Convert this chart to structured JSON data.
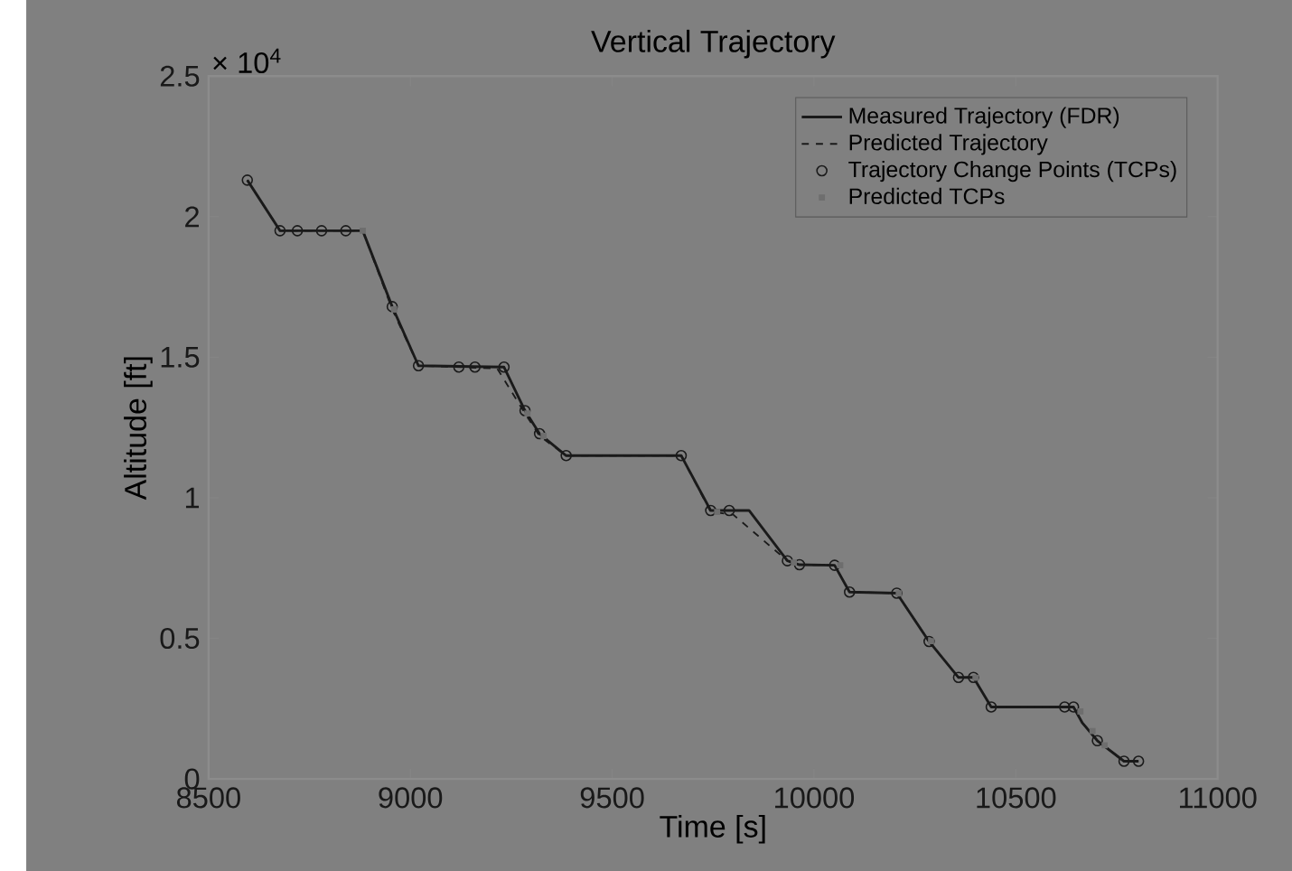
{
  "chart_data": {
    "type": "line",
    "title": "Vertical Trajectory",
    "xlabel": "Time [s]",
    "ylabel": "Altitude [ft]",
    "annotations": [
      "× 10$^{4}$"
    ],
    "xlim": [
      8500,
      11000
    ],
    "xticks": [
      8500,
      9000,
      9500,
      10000,
      10500,
      11000
    ],
    "ylim": [
      0,
      2.5
    ],
    "yticks": [
      0,
      0.5,
      1,
      1.5,
      2,
      2.5
    ],
    "legend": "top right",
    "grid": false,
    "series": [
      {
        "name": "Measured Trajectory (FDR)",
        "type": "line",
        "line_style": "solid",
        "marker": "none",
        "color": "#1a1a1a",
        "x": [
          8596,
          8677,
          8882,
          8955,
          9020,
          9232,
          9284,
          9320,
          9386,
          9671,
          9744,
          9839,
          9934,
          9964,
          10051,
          10088,
          10205,
          10285,
          10358,
          10395,
          10439,
          10621,
          10643,
          10665,
          10702,
          10768,
          10804
        ],
        "values": [
          2.13,
          1.95,
          1.95,
          1.68,
          1.47,
          1.465,
          1.31,
          1.228,
          1.15,
          1.15,
          0.955,
          0.955,
          0.776,
          0.762,
          0.76,
          0.665,
          0.661,
          0.489,
          0.361,
          0.361,
          0.256,
          0.256,
          0.256,
          0.199,
          0.136,
          0.063,
          0.063
        ]
      },
      {
        "name": "Predicted Trajectory",
        "type": "line",
        "line_style": "dashed",
        "marker": "none",
        "color": "#1a1a1a",
        "x": [
          8596,
          8677,
          8882,
          8955,
          9020,
          9215,
          9284,
          9320,
          9386,
          9671,
          9744,
          9800,
          9934,
          9964,
          10051,
          10088,
          10205,
          10285,
          10358,
          10395,
          10439,
          10621,
          10643,
          10665,
          10702,
          10768,
          10804
        ],
        "values": [
          2.13,
          1.95,
          1.95,
          1.67,
          1.47,
          1.46,
          1.3,
          1.22,
          1.15,
          1.15,
          0.95,
          0.94,
          0.776,
          0.762,
          0.76,
          0.665,
          0.661,
          0.489,
          0.361,
          0.361,
          0.256,
          0.256,
          0.256,
          0.199,
          0.136,
          0.063,
          0.063
        ]
      },
      {
        "name": "Trajectory Change Points (TCPs)",
        "type": "scatter",
        "marker": "circle",
        "color": "#1a1a1a",
        "x": [
          8596,
          8677,
          8720,
          8780,
          8840,
          8955,
          9020,
          9120,
          9160,
          9232,
          9284,
          9320,
          9386,
          9671,
          9744,
          9790,
          9934,
          9964,
          10051,
          10088,
          10205,
          10285,
          10358,
          10395,
          10439,
          10621,
          10643,
          10702,
          10768,
          10804
        ],
        "values": [
          2.13,
          1.95,
          1.95,
          1.95,
          1.95,
          1.68,
          1.47,
          1.465,
          1.465,
          1.465,
          1.31,
          1.228,
          1.15,
          1.15,
          0.955,
          0.955,
          0.776,
          0.762,
          0.76,
          0.665,
          0.661,
          0.489,
          0.361,
          0.361,
          0.256,
          0.256,
          0.256,
          0.136,
          0.063,
          0.063
        ]
      },
      {
        "name": "Predicted TCPs",
        "type": "scatter",
        "marker": "square",
        "color": "#6e6e6e",
        "x": [
          8882,
          8960,
          9290,
          9330,
          9760,
          9950,
          10065,
          10210,
          10290,
          10400,
          10660,
          10690,
          10720
        ],
        "values": [
          1.95,
          1.67,
          1.3,
          1.22,
          0.95,
          0.77,
          0.76,
          0.66,
          0.49,
          0.36,
          0.24,
          0.17,
          0.12
        ]
      }
    ]
  }
}
